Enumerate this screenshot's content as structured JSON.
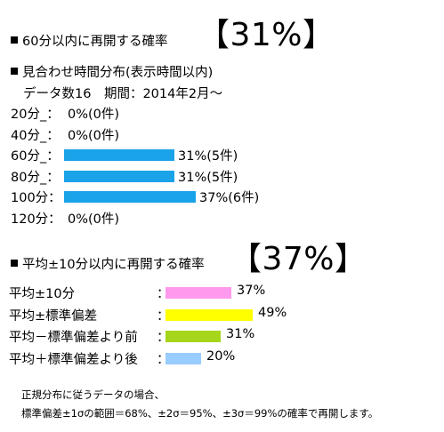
{
  "section1": {
    "heading": "60分以内に再開する確率",
    "big_value": "【31%】"
  },
  "section2": {
    "heading": "見合わせ時間分布(表示時間以内)",
    "info": "データ数16　期間：2014年2月～"
  },
  "section3": {
    "heading": "平均±10分以内に再開する確率",
    "big_value": "【37%】"
  },
  "chart_data": [
    {
      "type": "bar",
      "orientation": "horizontal",
      "categories": [
        "20分_：",
        "40分_：",
        "60分_：",
        "80分_：",
        "100分：",
        "120分："
      ],
      "values": [
        0,
        0,
        31,
        31,
        37,
        0
      ],
      "value_labels": [
        "0%(0件)",
        "0%(0件)",
        "31%(5件)",
        "31%(5件)",
        "37%(6件)",
        "0%(0件)"
      ],
      "colors": [
        "#1aa3e8",
        "#1aa3e8",
        "#1aa3e8",
        "#1aa3e8",
        "#1aa3e8",
        "#1aa3e8"
      ],
      "xlim": [
        0,
        50
      ]
    },
    {
      "type": "bar",
      "orientation": "horizontal",
      "categories": [
        "平均±10分",
        "平均±標準偏差",
        "平均－標準偏差より前",
        "平均＋標準偏差より後"
      ],
      "separators": [
        "：",
        "：",
        "：",
        "："
      ],
      "values": [
        37,
        49,
        31,
        20
      ],
      "value_labels": [
        "37%",
        "49%",
        "31%",
        "20%"
      ],
      "colors": [
        "#ff99ee",
        "#ffff00",
        "#a6d61a",
        "#99ccff"
      ],
      "xlim": [
        0,
        50
      ]
    }
  ],
  "footnote": {
    "line1": "正規分布に従うデータの場合、",
    "line2": "標準偏差±1σの範囲＝68%、±2σ＝95%、±3σ＝99%の確率で再開します。"
  }
}
